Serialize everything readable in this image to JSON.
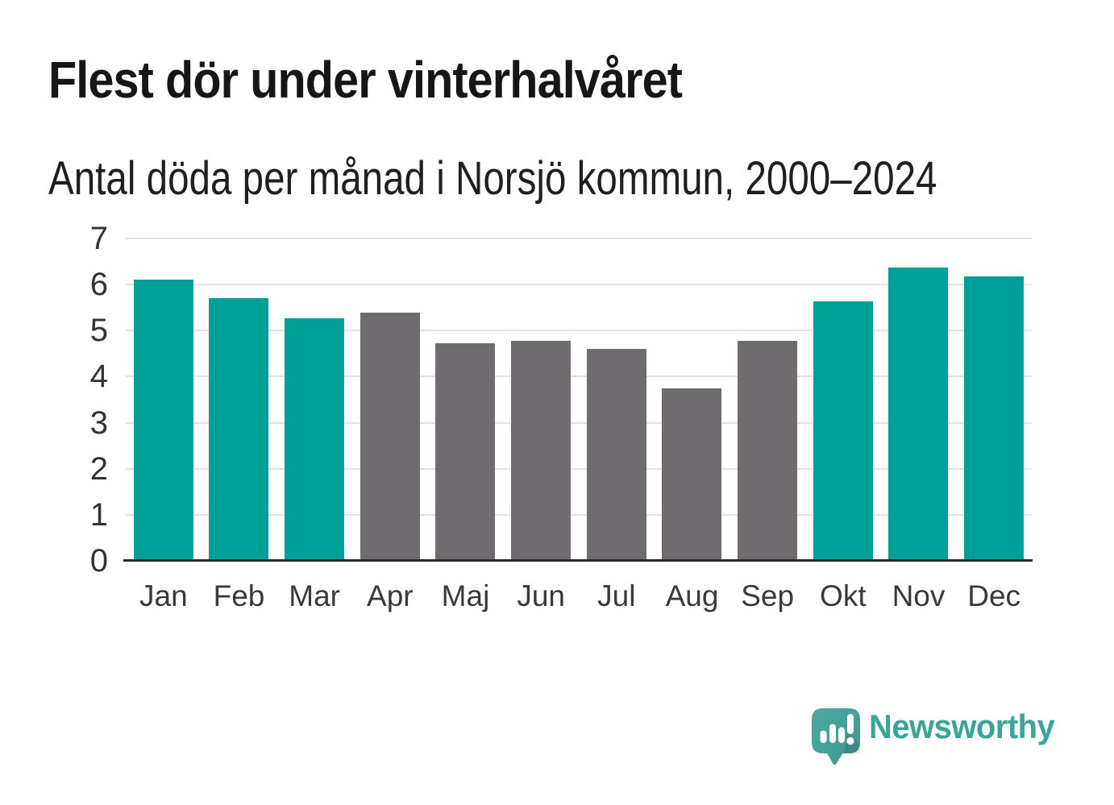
{
  "header": {
    "title": "Flest dör under vinterhalvåret",
    "subtitle": "Antal döda per månad i Norsjö kommun, 2000–2024"
  },
  "chart_data": {
    "type": "bar",
    "title": "Flest dör under vinterhalvåret",
    "subtitle": "Antal döda per månad i Norsjö kommun, 2000–2024",
    "categories": [
      "Jan",
      "Feb",
      "Mar",
      "Apr",
      "Maj",
      "Jun",
      "Jul",
      "Aug",
      "Sep",
      "Okt",
      "Nov",
      "Dec"
    ],
    "values": [
      6.1,
      5.7,
      5.27,
      5.39,
      4.73,
      4.78,
      4.6,
      3.75,
      4.78,
      5.64,
      6.37,
      6.17
    ],
    "bar_colors": [
      "winter",
      "winter",
      "winter",
      "summer",
      "summer",
      "summer",
      "summer",
      "summer",
      "summer",
      "winter",
      "winter",
      "winter"
    ],
    "palette": {
      "winter": "#00a09a",
      "summer": "#6f6b6f"
    },
    "xlabel": "",
    "ylabel": "",
    "ylim": [
      0,
      7
    ],
    "yticks": [
      0,
      1,
      2,
      3,
      4,
      5,
      6,
      7
    ],
    "grid": true,
    "gridline_color": "#e2e2e2",
    "axis_color": "#2b2b2b",
    "legend_position": "none"
  },
  "branding": {
    "logo_text": "Newsworthy",
    "logo_color": "#3aa49b",
    "logo_icon": "newsworthy-speech-bubble-chart-icon"
  }
}
